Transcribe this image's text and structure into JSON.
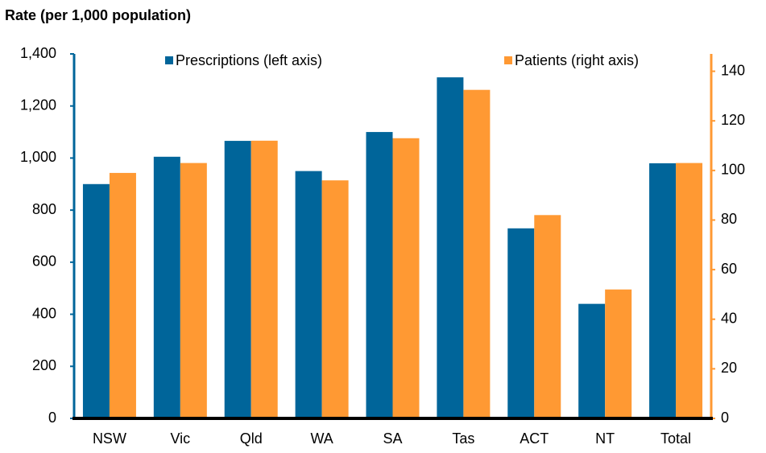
{
  "chart_data": {
    "type": "bar",
    "title": "Rate (per 1,000 population)",
    "categories": [
      "NSW",
      "Vic",
      "Qld",
      "WA",
      "SA",
      "Tas",
      "ACT",
      "NT",
      "Total"
    ],
    "series": [
      {
        "name": "Prescriptions (left axis)",
        "color": "#00659a",
        "values": [
          900,
          1005,
          1066,
          950,
          1100,
          1310,
          730,
          440,
          980
        ]
      },
      {
        "name": "Patients (right axis)",
        "color": "#ff9933",
        "axis": "y2",
        "values": [
          99,
          103,
          112,
          96,
          113,
          132.5,
          82,
          52,
          103
        ]
      }
    ],
    "ylim": [
      0,
      1400
    ],
    "yticks": [
      0,
      200,
      400,
      600,
      800,
      {
        "value": 1000,
        "label": "1,000"
      },
      {
        "value": 1200,
        "label": "1,200"
      },
      {
        "value": 1400,
        "label": "1,400"
      }
    ],
    "y2lim": [
      0,
      147
    ],
    "y2ticks": [
      0,
      20,
      40,
      60,
      80,
      100,
      120,
      140
    ]
  }
}
